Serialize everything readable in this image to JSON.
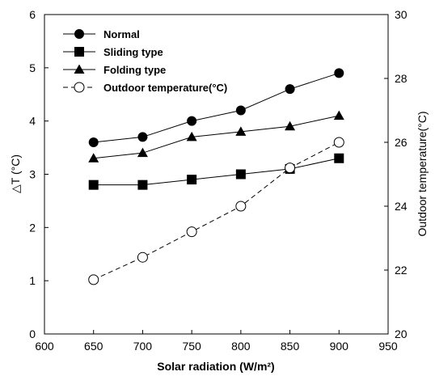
{
  "chart_data": {
    "type": "line",
    "x": [
      650,
      700,
      750,
      800,
      850,
      900
    ],
    "xlabel": "Solar radiation (W/m²)",
    "xlim": [
      600,
      950
    ],
    "xticks": [
      "600",
      "650",
      "700",
      "750",
      "800",
      "850",
      "900",
      "950"
    ],
    "ylabel_left": "△T (°C)",
    "ylim_left": [
      0,
      6
    ],
    "yticks_left": [
      "0",
      "1",
      "2",
      "3",
      "4",
      "5",
      "6"
    ],
    "ylabel_right": "Outdoor temperature(°C)",
    "ylim_right": [
      20,
      30
    ],
    "yticks_right": [
      "20",
      "22",
      "24",
      "26",
      "28",
      "30"
    ],
    "series": [
      {
        "name": "Normal",
        "axis": "left",
        "marker": "filled-circle",
        "line": "solid",
        "values": [
          3.6,
          3.7,
          4.0,
          4.2,
          4.6,
          4.9
        ]
      },
      {
        "name": "Sliding type",
        "axis": "left",
        "marker": "filled-square",
        "line": "solid",
        "values": [
          2.8,
          2.8,
          2.9,
          3.0,
          3.1,
          3.3
        ]
      },
      {
        "name": "Folding type",
        "axis": "left",
        "marker": "filled-triangle",
        "line": "solid",
        "values": [
          3.3,
          3.4,
          3.7,
          3.8,
          3.9,
          4.1
        ]
      },
      {
        "name": "Outdoor temperature(°C)",
        "axis": "right",
        "marker": "open-circle",
        "line": "dashed",
        "values": [
          21.7,
          22.4,
          23.2,
          24.0,
          25.2,
          26.0
        ]
      }
    ],
    "legend_position": "top-left",
    "grid": false
  }
}
